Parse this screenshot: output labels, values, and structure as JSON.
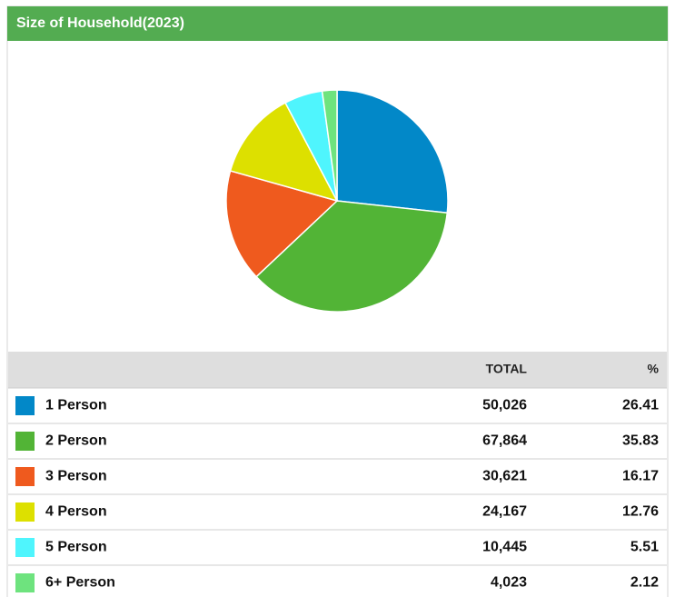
{
  "chart_data": {
    "type": "pie",
    "title": "Size of Household(2023)",
    "columns": [
      "TOTAL",
      "%"
    ],
    "categories": [
      "1 Person",
      "2 Person",
      "3 Person",
      "4 Person",
      "5 Person",
      "6+ Person"
    ],
    "values": [
      50026,
      67864,
      30621,
      24167,
      10445,
      4023
    ],
    "value_labels": [
      "50,026",
      "67,864",
      "30,621",
      "24,167",
      "10,445",
      "4,023"
    ],
    "percents": [
      26.41,
      35.83,
      16.17,
      12.76,
      5.51,
      2.12
    ],
    "colors": [
      "#0288c8",
      "#52b436",
      "#ef5a1e",
      "#dde000",
      "#4ff5fd",
      "#6ee37e"
    ]
  }
}
